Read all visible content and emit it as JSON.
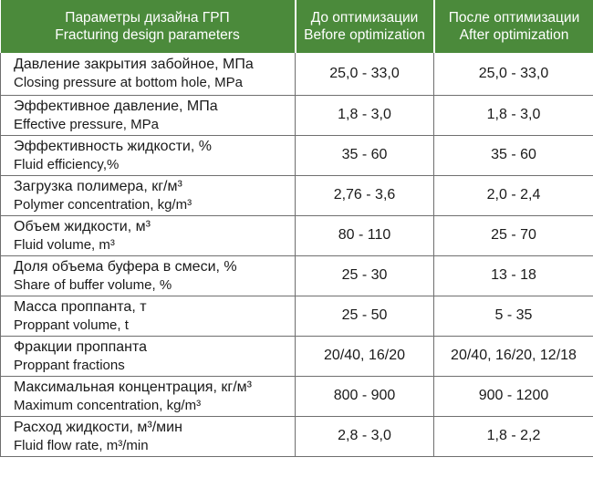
{
  "header": {
    "col1_ru": "Параметры дизайна ГРП",
    "col1_en": "Fracturing design parameters",
    "col2_ru": "До оптимизации",
    "col2_en": "Before optimization",
    "col3_ru": "После оптимизации",
    "col3_en": "After optimization"
  },
  "rows": [
    {
      "ru": "Давление закрытия забойное, МПа",
      "en": "Closing pressure at bottom hole, MPa",
      "before": "25,0 - 33,0",
      "after": "25,0 - 33,0"
    },
    {
      "ru": "Эффективное давление, МПа",
      "en": "Effective pressure, MPa",
      "before": "1,8 - 3,0",
      "after": "1,8 - 3,0"
    },
    {
      "ru": "Эффективность жидкости, %",
      "en": "Fluid efficiency,%",
      "before": "35 - 60",
      "after": "35 - 60"
    },
    {
      "ru": "Загрузка полимера, кг/м³",
      "en": "Polymer concentration, kg/m³",
      "before": "2,76 - 3,6",
      "after": "2,0 - 2,4"
    },
    {
      "ru": "Объем жидкости, м³",
      "en": "Fluid volume, m³",
      "before": "80 - 110",
      "after": "25 - 70"
    },
    {
      "ru": "Доля объема буфера в смеси, %",
      "en": "Share of buffer volume, %",
      "before": "25 - 30",
      "after": "13 - 18"
    },
    {
      "ru": "Масса проппанта, т",
      "en": "Proppant volume, t",
      "before": "25 - 50",
      "after": "5 - 35"
    },
    {
      "ru": "Фракции проппанта",
      "en": "Proppant fractions",
      "before": "20/40, 16/20",
      "after": "20/40, 16/20, 12/18"
    },
    {
      "ru": "Максимальная концентрация, кг/м³",
      "en": "Maximum concentration, kg/m³",
      "before": "800 - 900",
      "after": "900 - 1200"
    },
    {
      "ru": "Расход жидкости, м³/мин",
      "en": "Fluid flow rate, m³/min",
      "before": "2,8 - 3,0",
      "after": "1,8 - 2,2"
    }
  ]
}
